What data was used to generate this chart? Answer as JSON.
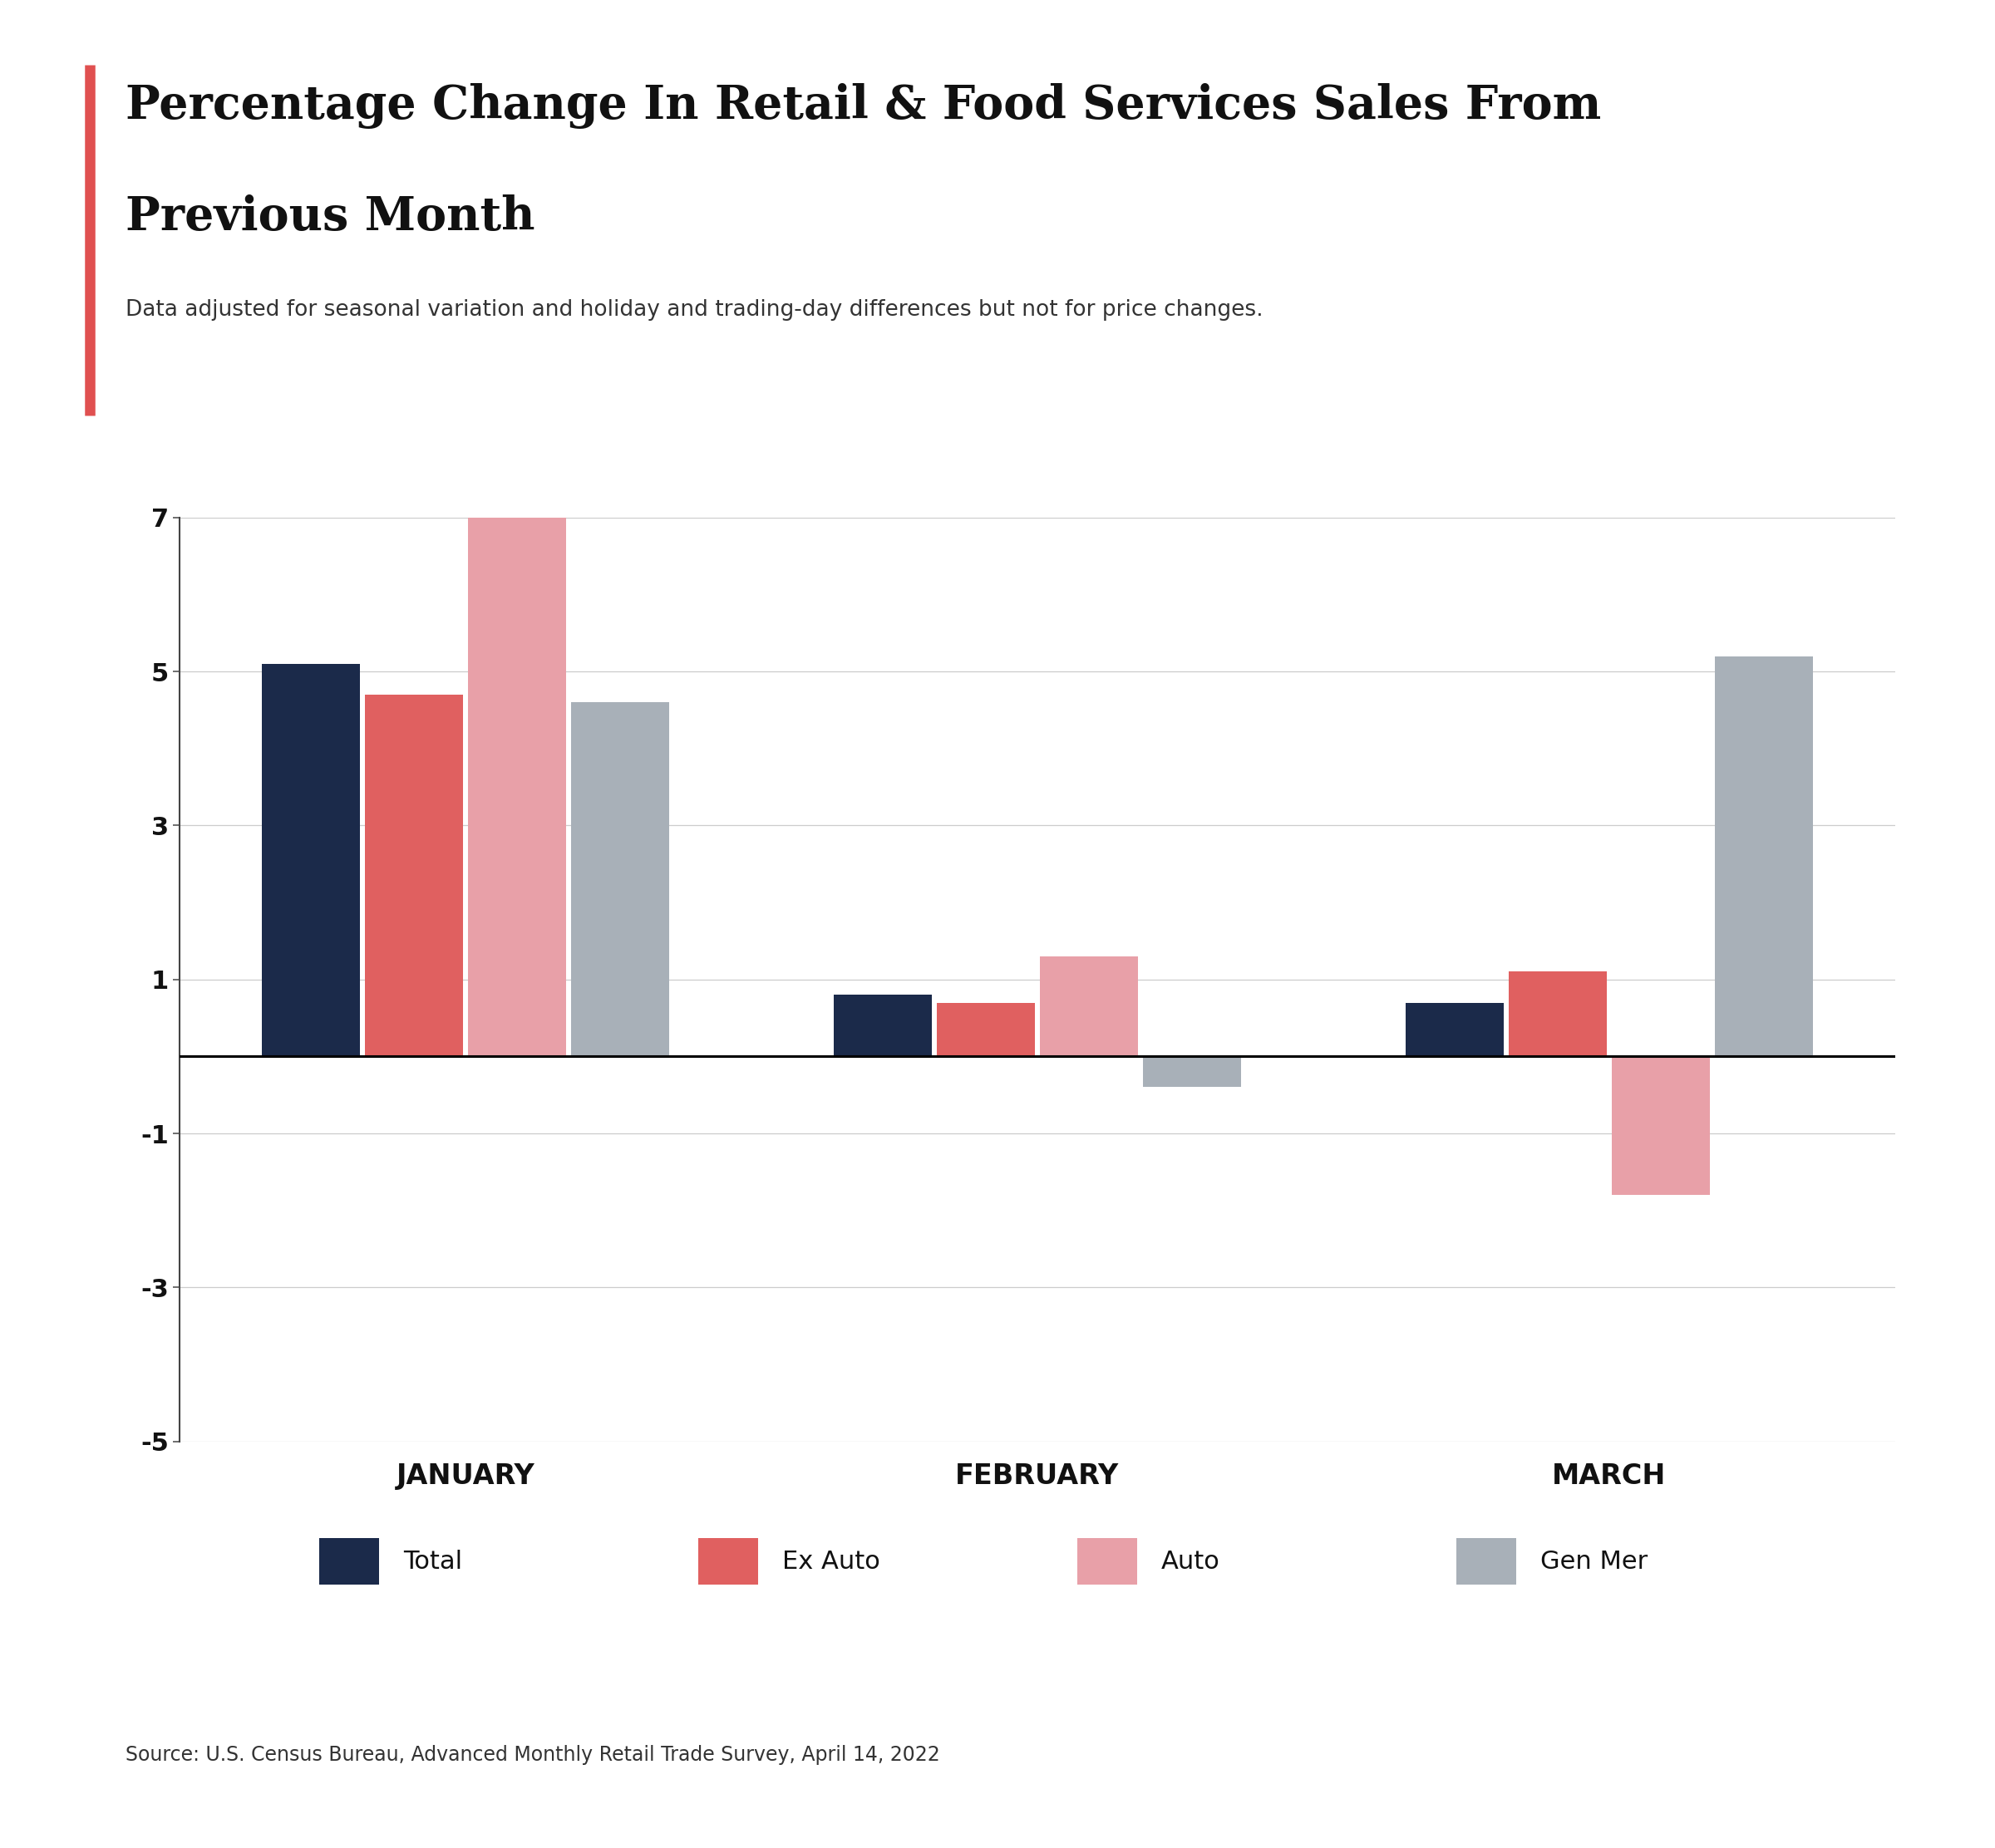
{
  "title_line1": "Percentage Change In Retail & Food Services Sales From",
  "title_line2": "Previous Month",
  "subtitle": "Data adjusted for seasonal variation and holiday and trading-day differences but not for price changes.",
  "source": "Source: U.S. Census Bureau, Advanced Monthly Retail Trade Survey, April 14, 2022",
  "months": [
    "JANUARY",
    "FEBRUARY",
    "MARCH"
  ],
  "series": {
    "Total": [
      5.1,
      0.8,
      0.7
    ],
    "Ex Auto": [
      4.7,
      0.7,
      1.1
    ],
    "Auto": [
      7.0,
      1.3,
      -1.8
    ],
    "Gen Mer": [
      4.6,
      -0.4,
      5.2
    ]
  },
  "colors": {
    "Total": "#1b2a4a",
    "Ex Auto": "#e06060",
    "Auto": "#e8a0a8",
    "Gen Mer": "#a8b0b8"
  },
  "ylim": [
    -5,
    7
  ],
  "yticks": [
    -5,
    -3,
    -1,
    1,
    3,
    5,
    7
  ],
  "bar_width": 0.18,
  "background_color": "#ffffff",
  "title_color": "#111111",
  "subtitle_color": "#333333",
  "source_color": "#333333",
  "accent_color": "#e05050",
  "title_fontsize": 40,
  "subtitle_fontsize": 19,
  "source_fontsize": 17,
  "tick_fontsize": 22,
  "month_fontsize": 24,
  "legend_fontsize": 22
}
